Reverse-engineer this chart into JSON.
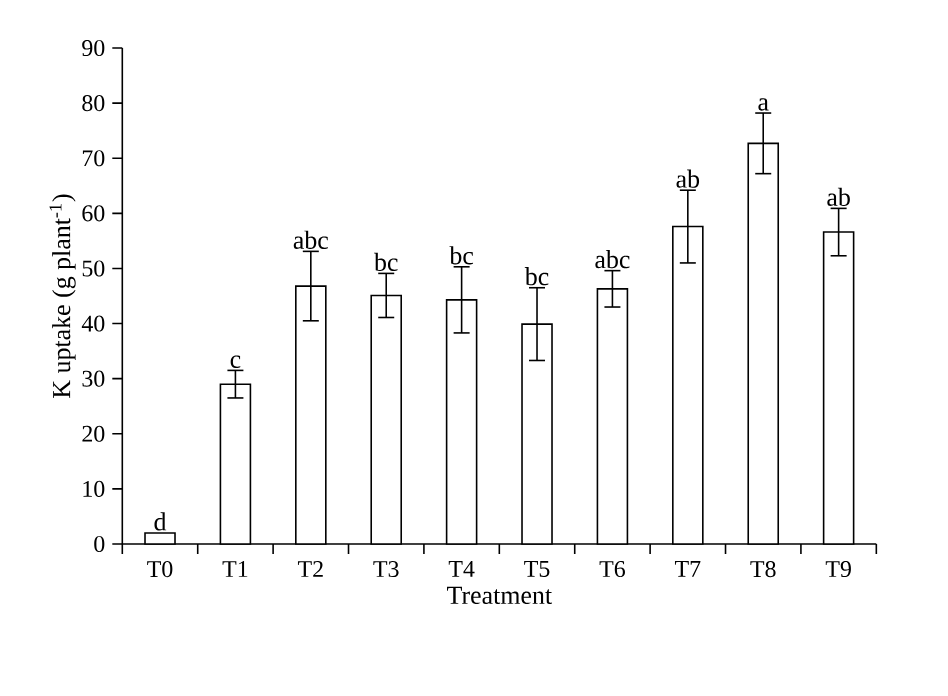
{
  "chart_data": {
    "type": "bar",
    "xlabel": "Treatment",
    "ylabel": "K uptake (g plant$^{-1}$)",
    "categories": [
      "T0",
      "T1",
      "T2",
      "T3",
      "T4",
      "T5",
      "T6",
      "T7",
      "T8",
      "T9"
    ],
    "values": [
      2,
      29,
      46.8,
      45.1,
      44.3,
      39.9,
      46.3,
      57.6,
      72.7,
      56.6
    ],
    "errors": [
      null,
      2.5,
      6.3,
      4,
      6,
      6.6,
      3.3,
      6.6,
      5.5,
      4.3
    ],
    "color": "#ffffff",
    "ylim": [
      0,
      90
    ],
    "yticks": [
      0,
      10,
      20,
      30,
      40,
      50,
      60,
      70,
      80,
      90
    ],
    "grid": false,
    "annotations": [
      {
        "text": "d",
        "x": "T0",
        "y": 2
      },
      {
        "text": "c",
        "x": "T1",
        "y": 31.5
      },
      {
        "text": "abc",
        "x": "T2",
        "y": 53.1
      },
      {
        "text": "bc",
        "x": "T3",
        "y": 49.1
      },
      {
        "text": "bc",
        "x": "T4",
        "y": 50.3
      },
      {
        "text": "bc",
        "x": "T5",
        "y": 46.5
      },
      {
        "text": "abc",
        "x": "T6",
        "y": 49.6
      },
      {
        "text": "ab",
        "x": "T7",
        "y": 64.2
      },
      {
        "text": "a",
        "x": "T8",
        "y": 78.2
      },
      {
        "text": "ab",
        "x": "T9",
        "y": 60.9
      }
    ]
  }
}
